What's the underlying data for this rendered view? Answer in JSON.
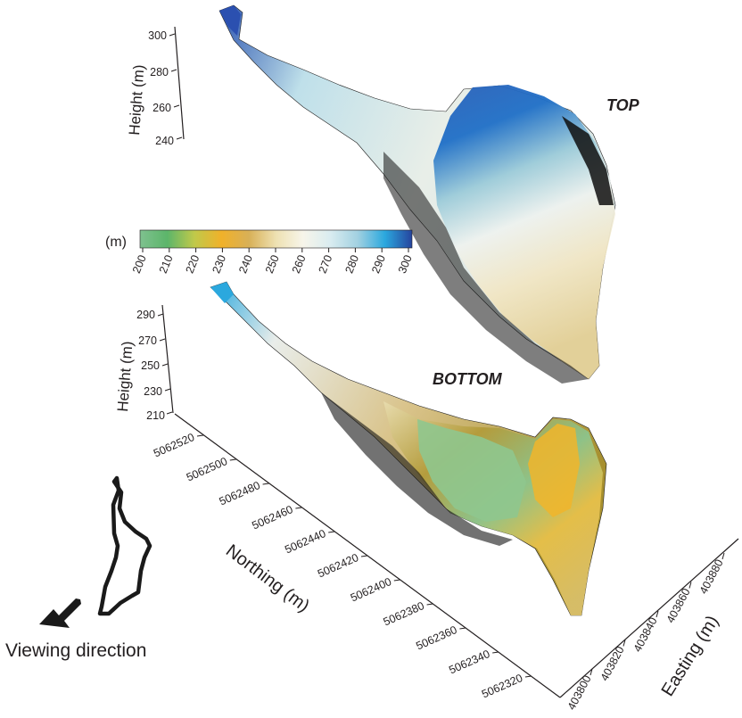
{
  "top_label": "TOP",
  "bottom_label": "BOTTOM",
  "colorbar": {
    "unit": "(m)",
    "ticks": [
      "200",
      "210",
      "220",
      "230",
      "240",
      "250",
      "260",
      "270",
      "280",
      "290",
      "300"
    ],
    "stops": [
      "#7fc18f",
      "#5cb56a",
      "#c0c94a",
      "#f0b12a",
      "#d8b057",
      "#eee1b2",
      "#f7f5ea",
      "#d9ecf0",
      "#a2d1e1",
      "#2ba8de",
      "#26449e"
    ]
  },
  "top_axis": {
    "title": "Height (m)",
    "ticks": [
      "300",
      "280",
      "260",
      "240"
    ]
  },
  "bottom_axis": {
    "title": "Height (m)",
    "ticks": [
      "290",
      "270",
      "250",
      "230",
      "210"
    ]
  },
  "northing_axis": {
    "title": "Northing (m)",
    "ticks": [
      "5062520",
      "5062500",
      "5062480",
      "5062460",
      "5062440",
      "5062420",
      "5062400",
      "5062380",
      "5062360",
      "5062340",
      "5062320"
    ]
  },
  "easting_axis": {
    "title": "Easting (m)",
    "ticks": [
      "403800",
      "403820",
      "403840",
      "403860",
      "403880"
    ]
  },
  "legend": {
    "label": "Viewing direction"
  }
}
